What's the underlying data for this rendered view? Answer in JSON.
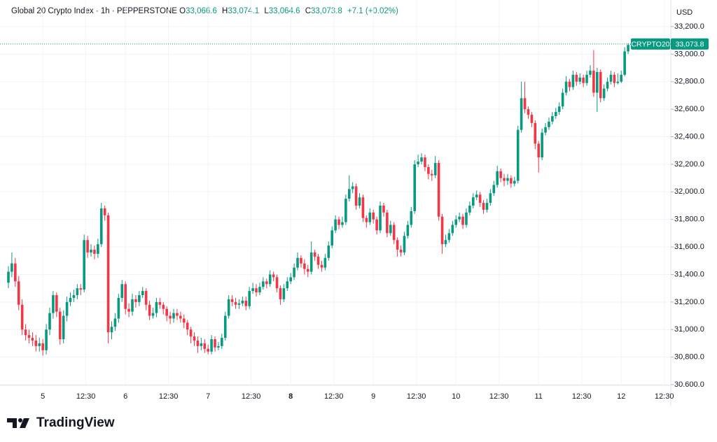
{
  "header": {
    "title": "Global 20 Crypto Index · 1h · PEPPERSTONE",
    "open_label": "O",
    "open": "33,066.6",
    "high_label": "H",
    "high": "33,074.1",
    "low_label": "L",
    "low": "33,064.6",
    "close_label": "C",
    "close": "33,073.8",
    "change": "+7.1 (+0.02%)"
  },
  "brand": "TradingView",
  "chart_data": {
    "type": "candlestick",
    "currency": "USD",
    "up_color": "#089981",
    "down_color": "#f23645",
    "grid": true,
    "ylim": [
      30600,
      33393
    ],
    "yticks": [
      {
        "value": 33200,
        "label": "33,200.0"
      },
      {
        "value": 33000,
        "label": "33,000.0"
      },
      {
        "value": 32800,
        "label": "32,800.0"
      },
      {
        "value": 32600,
        "label": "32,600.0"
      },
      {
        "value": 32400,
        "label": "32,400.0"
      },
      {
        "value": 32200,
        "label": "32,200.0"
      },
      {
        "value": 32000,
        "label": "32,000.0"
      },
      {
        "value": 31800,
        "label": "31,800.0"
      },
      {
        "value": 31600,
        "label": "31,600.0"
      },
      {
        "value": 31400,
        "label": "31,400.0"
      },
      {
        "value": 31200,
        "label": "31,200.0"
      },
      {
        "value": 31000,
        "label": "31,000.0"
      },
      {
        "value": 30800,
        "label": "30,800.0"
      },
      {
        "value": 30600,
        "label": "30.600.0"
      }
    ],
    "x_tick_labels": [
      "5",
      "12:30",
      "6",
      "12:30",
      "7",
      "12:30",
      "8",
      "12:30",
      "9",
      "12:30",
      "10",
      "12:30",
      "11",
      "12:30",
      "12",
      "12:30"
    ],
    "last_price": {
      "name": "CRYPTO20",
      "value": 33073.8,
      "value_label": "33,073.8"
    },
    "ohlc": [
      [
        31340,
        31460,
        31300,
        31420
      ],
      [
        31420,
        31560,
        31380,
        31480
      ],
      [
        31480,
        31520,
        31310,
        31350
      ],
      [
        31350,
        31390,
        31140,
        31180
      ],
      [
        31180,
        31220,
        30960,
        31000
      ],
      [
        31000,
        31040,
        30920,
        30960
      ],
      [
        30960,
        31000,
        30900,
        30940
      ],
      [
        30940,
        30980,
        30880,
        30920
      ],
      [
        30920,
        30960,
        30840,
        30880
      ],
      [
        30880,
        30940,
        30840,
        30900
      ],
      [
        30900,
        30930,
        30810,
        30850
      ],
      [
        30850,
        31040,
        30820,
        31000
      ],
      [
        31000,
        31160,
        30960,
        31120
      ],
      [
        31120,
        31280,
        31080,
        31250
      ],
      [
        31250,
        31270,
        31090,
        31130
      ],
      [
        31130,
        31160,
        30890,
        30930
      ],
      [
        30930,
        31140,
        30900,
        31100
      ],
      [
        31100,
        31240,
        31060,
        31200
      ],
      [
        31200,
        31270,
        31170,
        31230
      ],
      [
        31230,
        31290,
        31200,
        31250
      ],
      [
        31250,
        31330,
        31220,
        31300
      ],
      [
        31300,
        31330,
        31250,
        31290
      ],
      [
        31290,
        31690,
        31270,
        31650
      ],
      [
        31650,
        31680,
        31520,
        31560
      ],
      [
        31560,
        31620,
        31530,
        31580
      ],
      [
        31580,
        31610,
        31510,
        31550
      ],
      [
        31550,
        31660,
        31520,
        31620
      ],
      [
        31620,
        31920,
        31600,
        31880
      ],
      [
        31880,
        31900,
        31790,
        31830
      ],
      [
        31830,
        31850,
        30900,
        30980
      ],
      [
        30980,
        31060,
        30930,
        31020
      ],
      [
        31020,
        31120,
        30990,
        31080
      ],
      [
        31080,
        31260,
        31050,
        31230
      ],
      [
        31230,
        31360,
        31200,
        31330
      ],
      [
        31330,
        31350,
        31110,
        31150
      ],
      [
        31150,
        31190,
        31090,
        31130
      ],
      [
        31130,
        31260,
        31100,
        31220
      ],
      [
        31220,
        31250,
        31160,
        31200
      ],
      [
        31200,
        31280,
        31170,
        31250
      ],
      [
        31250,
        31310,
        31230,
        31280
      ],
      [
        31280,
        31300,
        31140,
        31180
      ],
      [
        31180,
        31210,
        31070,
        31100
      ],
      [
        31100,
        31160,
        31080,
        31120
      ],
      [
        31120,
        31230,
        31090,
        31200
      ],
      [
        31200,
        31230,
        31150,
        31180
      ],
      [
        31180,
        31200,
        31110,
        31150
      ],
      [
        31150,
        31170,
        31060,
        31100
      ],
      [
        31100,
        31130,
        31040,
        31080
      ],
      [
        31080,
        31150,
        31050,
        31120
      ],
      [
        31120,
        31150,
        31070,
        31100
      ],
      [
        31100,
        31130,
        31050,
        31080
      ],
      [
        31080,
        31110,
        31010,
        31050
      ],
      [
        31050,
        31070,
        30960,
        31000
      ],
      [
        31000,
        31020,
        30900,
        30950
      ],
      [
        30950,
        30980,
        30880,
        30920
      ],
      [
        30920,
        30950,
        30830,
        30880
      ],
      [
        30880,
        30940,
        30850,
        30900
      ],
      [
        30900,
        30930,
        30830,
        30860
      ],
      [
        30860,
        30890,
        30820,
        30840
      ],
      [
        30840,
        30960,
        30820,
        30930
      ],
      [
        30930,
        30950,
        30840,
        30870
      ],
      [
        30870,
        30910,
        30850,
        30880
      ],
      [
        30880,
        30970,
        30860,
        30940
      ],
      [
        30940,
        31130,
        30920,
        31100
      ],
      [
        31100,
        31250,
        31080,
        31220
      ],
      [
        31220,
        31250,
        31170,
        31200
      ],
      [
        31200,
        31230,
        31150,
        31180
      ],
      [
        31180,
        31220,
        31150,
        31190
      ],
      [
        31190,
        31240,
        31170,
        31210
      ],
      [
        31210,
        31240,
        31140,
        31170
      ],
      [
        31170,
        31310,
        31150,
        31280
      ],
      [
        31280,
        31340,
        31260,
        31300
      ],
      [
        31300,
        31330,
        31240,
        31270
      ],
      [
        31270,
        31340,
        31250,
        31310
      ],
      [
        31310,
        31380,
        31290,
        31350
      ],
      [
        31350,
        31370,
        31300,
        31330
      ],
      [
        31330,
        31430,
        31310,
        31400
      ],
      [
        31400,
        31420,
        31350,
        31380
      ],
      [
        31380,
        31400,
        31270,
        31300
      ],
      [
        31300,
        31320,
        31180,
        31220
      ],
      [
        31220,
        31330,
        31200,
        31300
      ],
      [
        31300,
        31380,
        31280,
        31350
      ],
      [
        31350,
        31410,
        31330,
        31380
      ],
      [
        31380,
        31480,
        31360,
        31450
      ],
      [
        31450,
        31560,
        31430,
        31520
      ],
      [
        31520,
        31540,
        31450,
        31480
      ],
      [
        31480,
        31510,
        31400,
        31440
      ],
      [
        31440,
        31470,
        31380,
        31420
      ],
      [
        31420,
        31640,
        31400,
        31560
      ],
      [
        31560,
        31580,
        31500,
        31530
      ],
      [
        31530,
        31550,
        31440,
        31470
      ],
      [
        31470,
        31500,
        31420,
        31450
      ],
      [
        31450,
        31550,
        31430,
        31520
      ],
      [
        31520,
        31640,
        31500,
        31610
      ],
      [
        31610,
        31750,
        31590,
        31720
      ],
      [
        31720,
        31830,
        31700,
        31800
      ],
      [
        31800,
        31820,
        31730,
        31760
      ],
      [
        31760,
        31820,
        31740,
        31780
      ],
      [
        31780,
        31980,
        31760,
        31950
      ],
      [
        31950,
        32120,
        31930,
        32020
      ],
      [
        32020,
        32070,
        31990,
        32040
      ],
      [
        32040,
        32060,
        31870,
        31900
      ],
      [
        31900,
        31990,
        31880,
        31960
      ],
      [
        31960,
        31980,
        31780,
        31810
      ],
      [
        31810,
        31830,
        31740,
        31780
      ],
      [
        31780,
        31880,
        31760,
        31850
      ],
      [
        31850,
        31870,
        31770,
        31800
      ],
      [
        31800,
        31820,
        31690,
        31720
      ],
      [
        31720,
        31930,
        31700,
        31900
      ],
      [
        31900,
        31920,
        31820,
        31850
      ],
      [
        31850,
        31870,
        31670,
        31700
      ],
      [
        31700,
        31790,
        31680,
        31760
      ],
      [
        31760,
        31780,
        31620,
        31650
      ],
      [
        31650,
        31670,
        31530,
        31580
      ],
      [
        31580,
        31610,
        31530,
        31560
      ],
      [
        31560,
        31710,
        31540,
        31680
      ],
      [
        31680,
        31790,
        31660,
        31760
      ],
      [
        31760,
        31890,
        31740,
        31860
      ],
      [
        31860,
        32230,
        31840,
        32200
      ],
      [
        32200,
        32270,
        32180,
        32220
      ],
      [
        32220,
        32280,
        32200,
        32250
      ],
      [
        32250,
        32270,
        32150,
        32180
      ],
      [
        32180,
        32200,
        32090,
        32130
      ],
      [
        32130,
        32160,
        32080,
        32120
      ],
      [
        32120,
        32260,
        32100,
        32210
      ],
      [
        32210,
        32230,
        31790,
        31820
      ],
      [
        31820,
        31840,
        31550,
        31620
      ],
      [
        31620,
        31690,
        31600,
        31650
      ],
      [
        31650,
        31730,
        31630,
        31700
      ],
      [
        31700,
        31790,
        31680,
        31760
      ],
      [
        31760,
        31830,
        31740,
        31800
      ],
      [
        31800,
        31850,
        31780,
        31820
      ],
      [
        31820,
        31840,
        31730,
        31760
      ],
      [
        31760,
        31880,
        31740,
        31850
      ],
      [
        31850,
        31930,
        31830,
        31900
      ],
      [
        31900,
        31990,
        31880,
        31960
      ],
      [
        31960,
        32010,
        31940,
        31980
      ],
      [
        31980,
        32000,
        31890,
        31920
      ],
      [
        31920,
        31940,
        31840,
        31870
      ],
      [
        31870,
        31950,
        31850,
        31920
      ],
      [
        31920,
        32020,
        31900,
        31990
      ],
      [
        31990,
        32080,
        31970,
        32050
      ],
      [
        32050,
        32190,
        32030,
        32150
      ],
      [
        32150,
        32170,
        32070,
        32100
      ],
      [
        32100,
        32130,
        32040,
        32080
      ],
      [
        32080,
        32130,
        32050,
        32100
      ],
      [
        32100,
        32120,
        32030,
        32060
      ],
      [
        32060,
        32110,
        32040,
        32080
      ],
      [
        32080,
        32480,
        32060,
        32450
      ],
      [
        32450,
        32800,
        32430,
        32680
      ],
      [
        32680,
        32800,
        32570,
        32600
      ],
      [
        32600,
        32620,
        32530,
        32560
      ],
      [
        32560,
        32580,
        32470,
        32500
      ],
      [
        32500,
        32520,
        32310,
        32350
      ],
      [
        32350,
        32370,
        32140,
        32250
      ],
      [
        32250,
        32460,
        32230,
        32430
      ],
      [
        32430,
        32500,
        32410,
        32470
      ],
      [
        32470,
        32540,
        32450,
        32510
      ],
      [
        32510,
        32580,
        32490,
        32550
      ],
      [
        32550,
        32610,
        32530,
        32580
      ],
      [
        32580,
        32650,
        32560,
        32620
      ],
      [
        32620,
        32750,
        32600,
        32720
      ],
      [
        32720,
        32840,
        32700,
        32800
      ],
      [
        32800,
        32820,
        32730,
        32760
      ],
      [
        32760,
        32880,
        32740,
        32850
      ],
      [
        32850,
        32870,
        32770,
        32800
      ],
      [
        32800,
        32860,
        32780,
        32830
      ],
      [
        32830,
        32850,
        32760,
        32790
      ],
      [
        32790,
        32880,
        32770,
        32850
      ],
      [
        32850,
        32920,
        32830,
        32880
      ],
      [
        32880,
        33030,
        32690,
        32720
      ],
      [
        32720,
        32900,
        32580,
        32870
      ],
      [
        32870,
        32890,
        32650,
        32680
      ],
      [
        32680,
        32780,
        32660,
        32750
      ],
      [
        32750,
        32830,
        32730,
        32800
      ],
      [
        32800,
        32880,
        32780,
        32850
      ],
      [
        32850,
        32870,
        32760,
        32790
      ],
      [
        32790,
        32860,
        32780,
        32800
      ],
      [
        32800,
        32880,
        32790,
        32850
      ],
      [
        32850,
        33050,
        32840,
        33020
      ],
      [
        33020,
        33080,
        33000,
        33066.6
      ],
      [
        33066.6,
        33074.1,
        33064.6,
        33073.8
      ]
    ]
  }
}
